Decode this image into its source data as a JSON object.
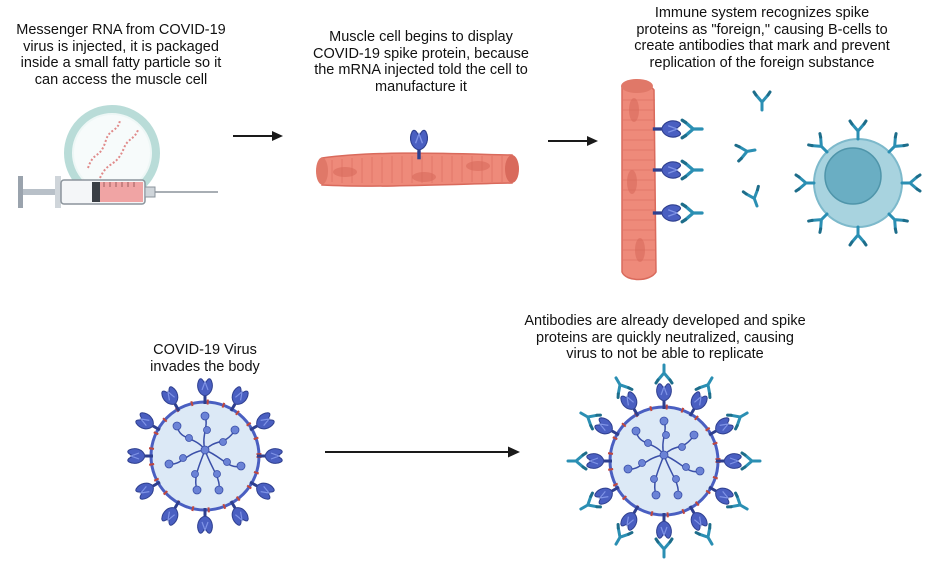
{
  "captions": {
    "mrna_injection": "Messenger RNA from COVID-19\nvirus is injected, it is packaged\ninside a small fatty particle so it\ncan access the muscle cell",
    "muscle_display": "Muscle cell begins to display\nCOVID-19 spike protein, because\nthe mRNA injected told the cell to\nmanufacture it",
    "immune_response": "Immune system recognizes spike\nproteins as \"foreign,\" causing B-cells to\ncreate antibodies that mark and prevent\nreplication of the foreign substance",
    "virus_invades": "COVID-19 Virus\ninvades the body",
    "neutralized": "Antibodies are already developed and spike\nproteins are quickly neutralized, causing\nvirus to not be able to replicate"
  },
  "colors": {
    "muscle": "#ee8a7a",
    "muscle_dark": "#d96a5c",
    "spike": "#4a5fc1",
    "spike_dark": "#2e3f8f",
    "antibody": "#2b8fb3",
    "bcell_outer": "#a8d3df",
    "bcell_nucleus": "#6aaec3",
    "virus_fill": "#dce9f6",
    "virus_ring": "#4a5fc1",
    "lipid_ring": "#b9dcd8",
    "syringe_fluid": "#f0a4a4",
    "arrow": "#1a1a1a"
  },
  "icons": [
    "syringe-icon",
    "lipid-nanoparticle-icon",
    "muscle-cell-icon",
    "spike-protein-icon",
    "antibody-icon",
    "b-cell-icon",
    "virus-icon",
    "arrow-icon"
  ]
}
